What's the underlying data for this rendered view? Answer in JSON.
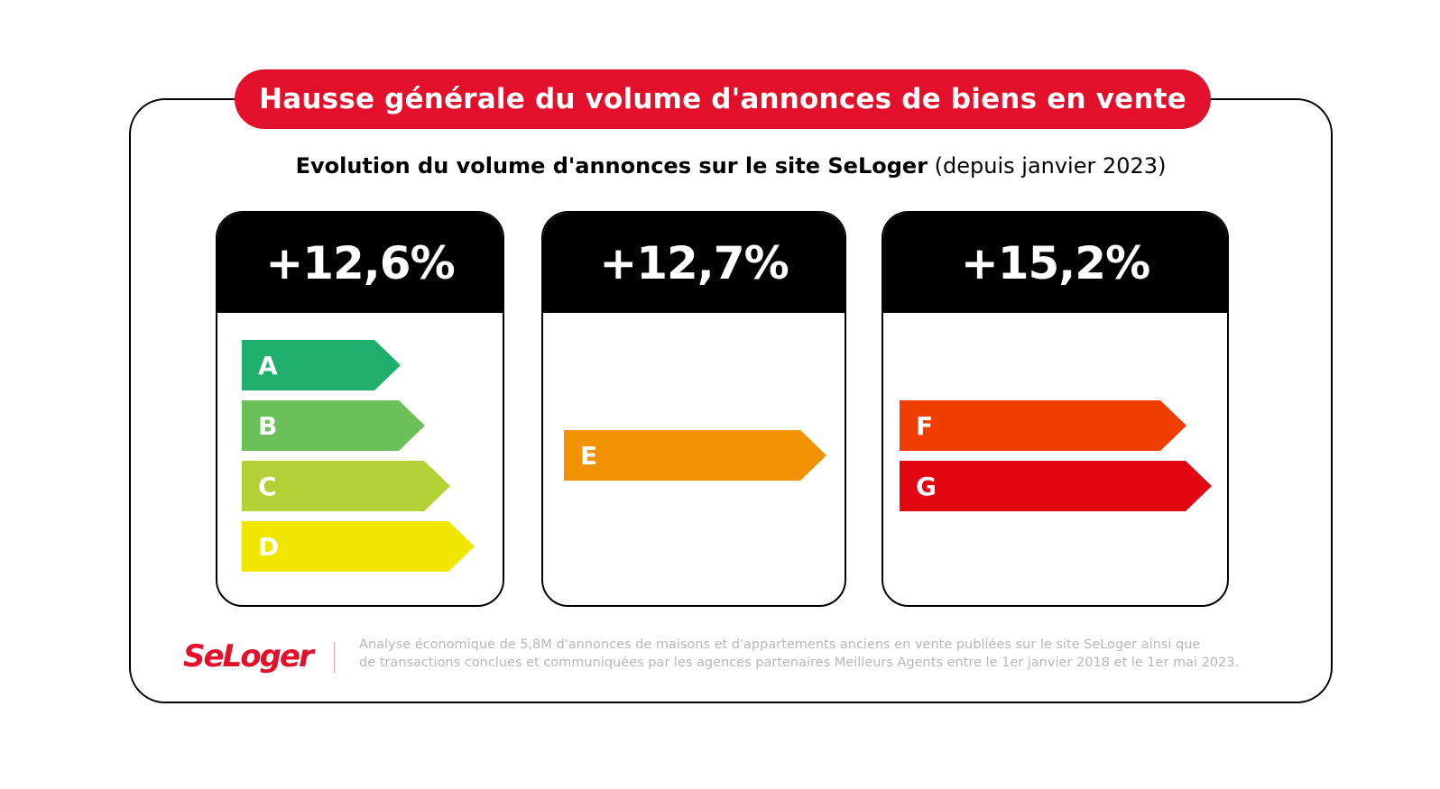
{
  "header": {
    "banner_title": "Hausse générale du volume d'annonces de biens en vente",
    "subtitle_bold": "Evolution du volume d'annonces sur le site SeLoger",
    "subtitle_light": " (depuis janvier 2023)"
  },
  "cards": [
    {
      "value": "+12,6%",
      "classes": [
        {
          "label": "A",
          "color": "#21ad6b"
        },
        {
          "label": "B",
          "color": "#6cc05a"
        },
        {
          "label": "C",
          "color": "#b2d235"
        },
        {
          "label": "D",
          "color": "#f1e600"
        }
      ]
    },
    {
      "value": "+12,7%",
      "classes": [
        {
          "label": "E",
          "color": "#f39200"
        }
      ]
    },
    {
      "value": "+15,2%",
      "classes": [
        {
          "label": "F",
          "color": "#ef3d00"
        },
        {
          "label": "G",
          "color": "#e20613"
        }
      ]
    }
  ],
  "footer": {
    "logo_text": "SeLoger",
    "note_line1": "Analyse économique de 5,8M d'annonces de maisons et d'appartements anciens en vente publiées sur le site SeLoger ainsi que",
    "note_line2": "de transactions conclues et communiquées par les agences partenaires Meilleurs Agents entre le 1er janvier 2018 et le 1er mai 2023."
  },
  "colors": {
    "brand_red": "#e3102b",
    "card_header": "#000000"
  }
}
